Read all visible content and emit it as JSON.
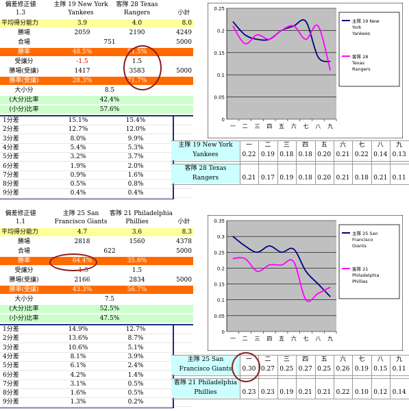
{
  "panels": [
    {
      "header": {
        "corr_label": "偏差修正値",
        "corr_val": "1.3",
        "home_label": "主隊",
        "home_team_a": "19 New York",
        "home_team_b": "Yankees",
        "away_label": "客隊",
        "away_team_a": "28 Texas",
        "away_team_b": "Rangers",
        "total_label": "小計"
      },
      "avg": {
        "label": "平均得分能力",
        "home": "3.9",
        "away": "4.0",
        "total": "8.0"
      },
      "wins": {
        "label": "勝場",
        "home": "2059",
        "away": "2190",
        "total": "4249"
      },
      "ties": {
        "label": "合場",
        "mid": "751",
        "total": "5000"
      },
      "winrate": {
        "label": "勝率",
        "home": "48.5%",
        "away": "51.5%"
      },
      "handicap": {
        "label": "受讓分",
        "home": "-1.5",
        "away": "1.5"
      },
      "wins_hc": {
        "label": "勝場(受讓)",
        "home": "1417",
        "away": "3583",
        "total": "5000"
      },
      "winrate_hc": {
        "label": "勝率(受讓)",
        "home": "28.3%",
        "away": "71.7%"
      },
      "ou": {
        "label": "大小分",
        "val": "8.5"
      },
      "over": {
        "label": "(大分)比率",
        "val": "42.4%"
      },
      "under": {
        "label": "(小分)比率",
        "val": "57.6%"
      },
      "diffs": [
        {
          "label": "1分差",
          "home": "15.1%",
          "away": "15.4%"
        },
        {
          "label": "2分差",
          "home": "12.7%",
          "away": "12.0%"
        },
        {
          "label": "3分差",
          "home": "8.0%",
          "away": "9.9%"
        },
        {
          "label": "4分差",
          "home": "5.4%",
          "away": "5.3%"
        },
        {
          "label": "5分差",
          "home": "3.2%",
          "away": "3.7%"
        },
        {
          "label": "6分差",
          "home": "1.9%",
          "away": "2.0%"
        },
        {
          "label": "7分差",
          "home": "0.9%",
          "away": "1.6%"
        },
        {
          "label": "8分差",
          "home": "0.5%",
          "away": "0.8%"
        },
        {
          "label": "9分差",
          "home": "0.4%",
          "away": "0.4%"
        }
      ],
      "stats": {
        "innings": [
          "一",
          "二",
          "三",
          "四",
          "五",
          "六",
          "七",
          "八",
          "九"
        ],
        "home_label_a": "主隊 19 New York",
        "home_label_b": "Yankees",
        "home_vals": [
          "0.22",
          "0.19",
          "0.18",
          "0.18",
          "0.20",
          "0.21",
          "0.22",
          "0.14",
          "0.13"
        ],
        "away_label_a": "客隊 28 Texas",
        "away_label_b": "Rangers",
        "away_vals": [
          "0.21",
          "0.17",
          "0.19",
          "0.18",
          "0.20",
          "0.21",
          "0.18",
          "0.21",
          "0.11"
        ]
      }
    },
    {
      "header": {
        "corr_label": "偏差修正値",
        "corr_val": "1.1",
        "home_label": "主隊",
        "home_team_a": "25 San",
        "home_team_b": "Francisco Giants",
        "away_label": "客隊",
        "away_team_a": "21 Philadelphia",
        "away_team_b": "Phillies",
        "total_label": "小計"
      },
      "avg": {
        "label": "平均得分能力",
        "home": "4.7",
        "away": "3.6",
        "total": "8.3"
      },
      "wins": {
        "label": "勝場",
        "home": "2818",
        "away": "1560",
        "total": "4378"
      },
      "ties": {
        "label": "合場",
        "mid": "622",
        "total": "5000"
      },
      "winrate": {
        "label": "勝率",
        "home": "64.4%",
        "away": "35.6%"
      },
      "handicap": {
        "label": "受讓分",
        "home": "-1.5",
        "away": "1.5"
      },
      "wins_hc": {
        "label": "勝場(受讓)",
        "home": "2166",
        "away": "2834",
        "total": "5000"
      },
      "winrate_hc": {
        "label": "勝率(受讓)",
        "home": "43.3%",
        "away": "56.7%"
      },
      "ou": {
        "label": "大小分",
        "val": "7.5"
      },
      "over": {
        "label": "(大分)比率",
        "val": "52.5%"
      },
      "under": {
        "label": "(小分)比率",
        "val": "47.5%"
      },
      "diffs": [
        {
          "label": "1分差",
          "home": "14.9%",
          "away": "12.7%"
        },
        {
          "label": "2分差",
          "home": "13.6%",
          "away": "8.7%"
        },
        {
          "label": "3分差",
          "home": "10.6%",
          "away": "5.1%"
        },
        {
          "label": "4分差",
          "home": "8.1%",
          "away": "3.9%"
        },
        {
          "label": "5分差",
          "home": "6.1%",
          "away": "2.4%"
        },
        {
          "label": "6分差",
          "home": "4.2%",
          "away": "1.4%"
        },
        {
          "label": "7分差",
          "home": "3.1%",
          "away": "0.5%"
        },
        {
          "label": "8分差",
          "home": "1.6%",
          "away": "0.5%"
        },
        {
          "label": "9分差",
          "home": "1.3%",
          "away": "0.2%"
        }
      ],
      "stats": {
        "innings": [
          "一",
          "二",
          "三",
          "四",
          "五",
          "六",
          "七",
          "八",
          "九"
        ],
        "home_label_a": "主隊 25 San",
        "home_label_b": "Francisco Giants",
        "home_vals": [
          "0.30",
          "0.27",
          "0.25",
          "0.27",
          "0.25",
          "0.26",
          "0.19",
          "0.15",
          "0.11"
        ],
        "away_label_a": "客隊 21 Philadelphia",
        "away_label_b": "Phillies",
        "away_vals": [
          "0.23",
          "0.23",
          "0.19",
          "0.21",
          "0.21",
          "0.22",
          "0.10",
          "0.12",
          "0.14"
        ]
      }
    }
  ],
  "chart_data": [
    {
      "type": "line",
      "categories": [
        "一",
        "二",
        "三",
        "四",
        "五",
        "六",
        "七",
        "八",
        "九"
      ],
      "series": [
        {
          "name": "主隊 19 New York Yankees",
          "values": [
            0.22,
            0.19,
            0.18,
            0.18,
            0.2,
            0.21,
            0.22,
            0.14,
            0.13
          ],
          "color": "#000080"
        },
        {
          "name": "客隊 28 Texas Rangers",
          "values": [
            0.21,
            0.17,
            0.19,
            0.18,
            0.2,
            0.21,
            0.18,
            0.21,
            0.11
          ],
          "color": "#ff00ff"
        }
      ],
      "ylim": [
        0,
        0.25
      ],
      "yticks": [
        "0",
        "0.05",
        "0.1",
        "0.15",
        "0.2",
        "0.25"
      ],
      "grid": true,
      "legend": "right"
    },
    {
      "type": "line",
      "categories": [
        "一",
        "二",
        "三",
        "四",
        "五",
        "六",
        "七",
        "八",
        "九"
      ],
      "series": [
        {
          "name": "主隊 25 San Francisco Giants",
          "values": [
            0.3,
            0.27,
            0.25,
            0.27,
            0.25,
            0.26,
            0.19,
            0.15,
            0.11
          ],
          "color": "#000080"
        },
        {
          "name": "客隊 21 Philadelphia Phillies",
          "values": [
            0.23,
            0.23,
            0.19,
            0.21,
            0.21,
            0.22,
            0.1,
            0.12,
            0.14
          ],
          "color": "#ff00ff"
        }
      ],
      "ylim": [
        0,
        0.35
      ],
      "yticks": [
        "0",
        "0.05",
        "0.1",
        "0.15",
        "0.2",
        "0.25",
        "0.3",
        "0.35"
      ],
      "grid": true,
      "legend": "right"
    }
  ]
}
